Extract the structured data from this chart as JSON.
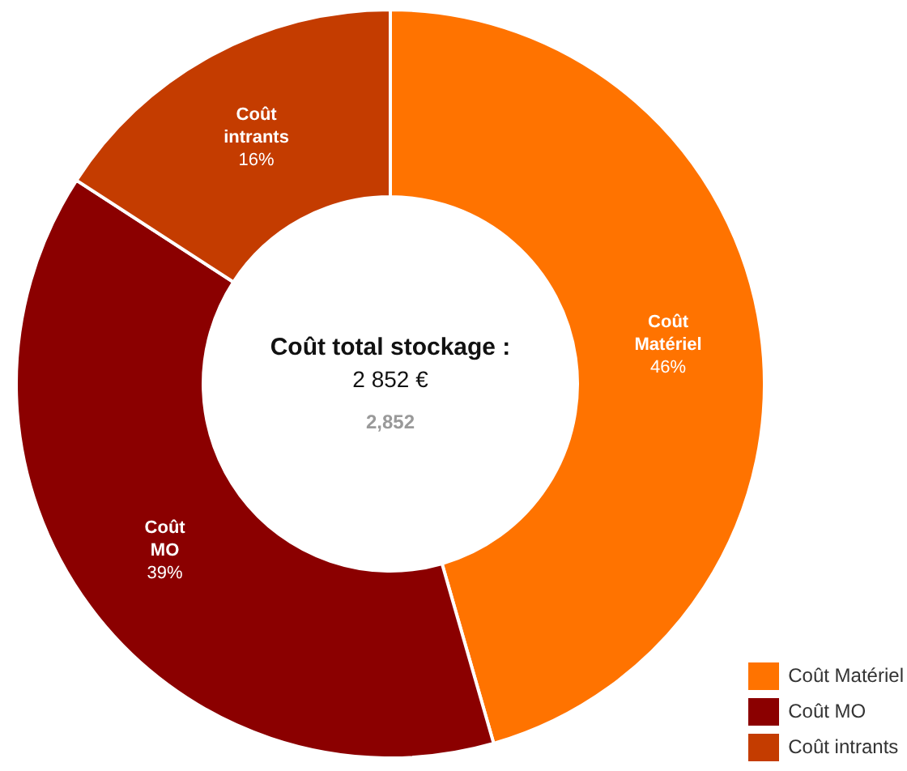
{
  "chart_data": {
    "type": "donut",
    "title": "Coût total stockage :",
    "subtitle": "2 852 €",
    "categories": [
      "Coût Matériel",
      "Coût MO",
      "Coût intrants"
    ],
    "values": [
      46,
      39,
      16
    ],
    "colors": [
      "#ff7300",
      "#8b0000",
      "#c43c00"
    ],
    "value_labels": [
      "46%",
      "39%",
      "16%"
    ],
    "annotations": [
      "2,852"
    ],
    "legend": "bottom right"
  }
}
